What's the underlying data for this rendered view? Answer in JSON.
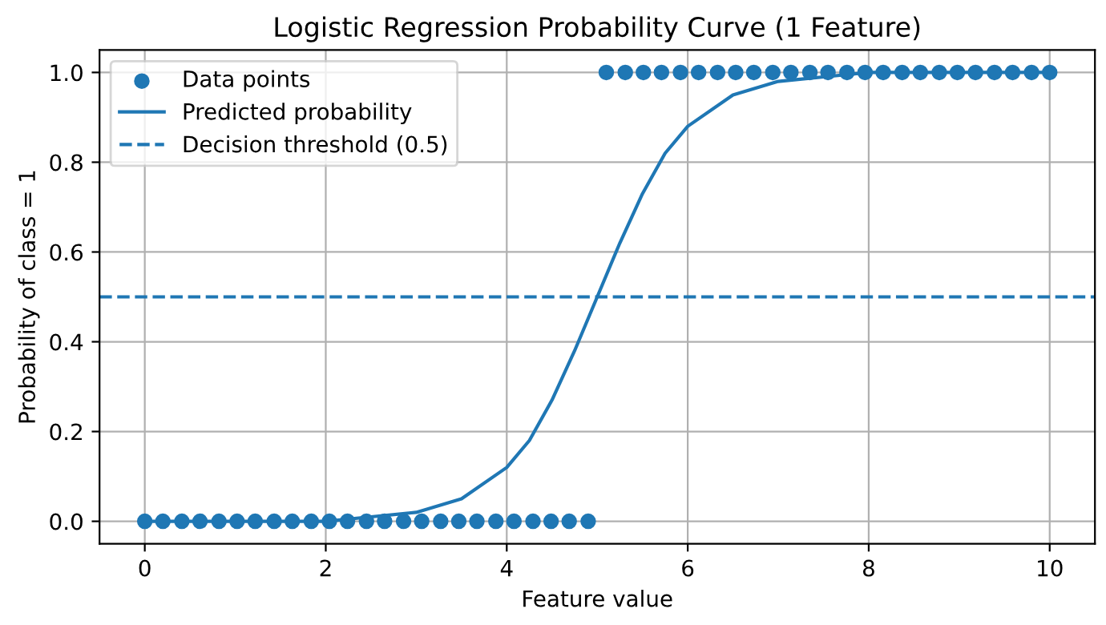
{
  "chart_data": {
    "type": "scatter",
    "title": "Logistic Regression Probability Curve (1 Feature)",
    "xlabel": "Feature value",
    "ylabel": "Probability of class = 1",
    "series": [
      {
        "name": "Data points",
        "color": "#1f77b4",
        "marker": "circle",
        "x": [
          0,
          0.2,
          0.41,
          0.61,
          0.82,
          1.02,
          1.22,
          1.43,
          1.63,
          1.84,
          2.04,
          2.24,
          2.45,
          2.65,
          2.86,
          3.06,
          3.27,
          3.47,
          3.67,
          3.88,
          4.08,
          4.29,
          4.49,
          4.69,
          4.9,
          5.1,
          5.31,
          5.51,
          5.71,
          5.92,
          6.12,
          6.33,
          6.53,
          6.73,
          6.94,
          7.14,
          7.35,
          7.55,
          7.76,
          7.96,
          8.16,
          8.37,
          8.57,
          8.78,
          8.98,
          9.18,
          9.39,
          9.59,
          9.8,
          10
        ],
        "values": [
          0,
          0,
          0,
          0,
          0,
          0,
          0,
          0,
          0,
          0,
          0,
          0,
          0,
          0,
          0,
          0,
          0,
          0,
          0,
          0,
          0,
          0,
          0,
          0,
          0,
          1,
          1,
          1,
          1,
          1,
          1,
          1,
          1,
          1,
          1,
          1,
          1,
          1,
          1,
          1,
          1,
          1,
          1,
          1,
          1,
          1,
          1,
          1,
          1,
          1
        ]
      },
      {
        "name": "Predicted probability",
        "type": "line",
        "color": "#1f77b4",
        "line_style": "solid",
        "x": [
          0,
          1,
          2,
          2.5,
          3,
          3.5,
          4,
          4.25,
          4.5,
          4.75,
          5,
          5.25,
          5.5,
          5.75,
          6,
          6.5,
          7,
          7.5,
          8,
          9,
          10
        ],
        "values": [
          0,
          0,
          0,
          0.01,
          0.02,
          0.05,
          0.12,
          0.18,
          0.27,
          0.38,
          0.5,
          0.62,
          0.73,
          0.82,
          0.88,
          0.95,
          0.98,
          0.99,
          1,
          1,
          1
        ]
      }
    ],
    "ref_lines": [
      {
        "axis": "y",
        "value": 0.5,
        "label": "Decision threshold (0.5)",
        "color": "#1f77b4",
        "line_style": "dashed"
      }
    ],
    "xlim": [
      -0.5,
      10.5
    ],
    "ylim": [
      -0.05,
      1.05
    ],
    "xticks": [
      0,
      2,
      4,
      6,
      8,
      10
    ],
    "yticks": [
      {
        "value": 0,
        "label": "0.0"
      },
      {
        "value": 0.2,
        "label": "0.2"
      },
      {
        "value": 0.4,
        "label": "0.4"
      },
      {
        "value": 0.6,
        "label": "0.6"
      },
      {
        "value": 0.8,
        "label": "0.8"
      },
      {
        "value": 1,
        "label": "1.0"
      }
    ],
    "grid": true,
    "legend": "top left"
  }
}
